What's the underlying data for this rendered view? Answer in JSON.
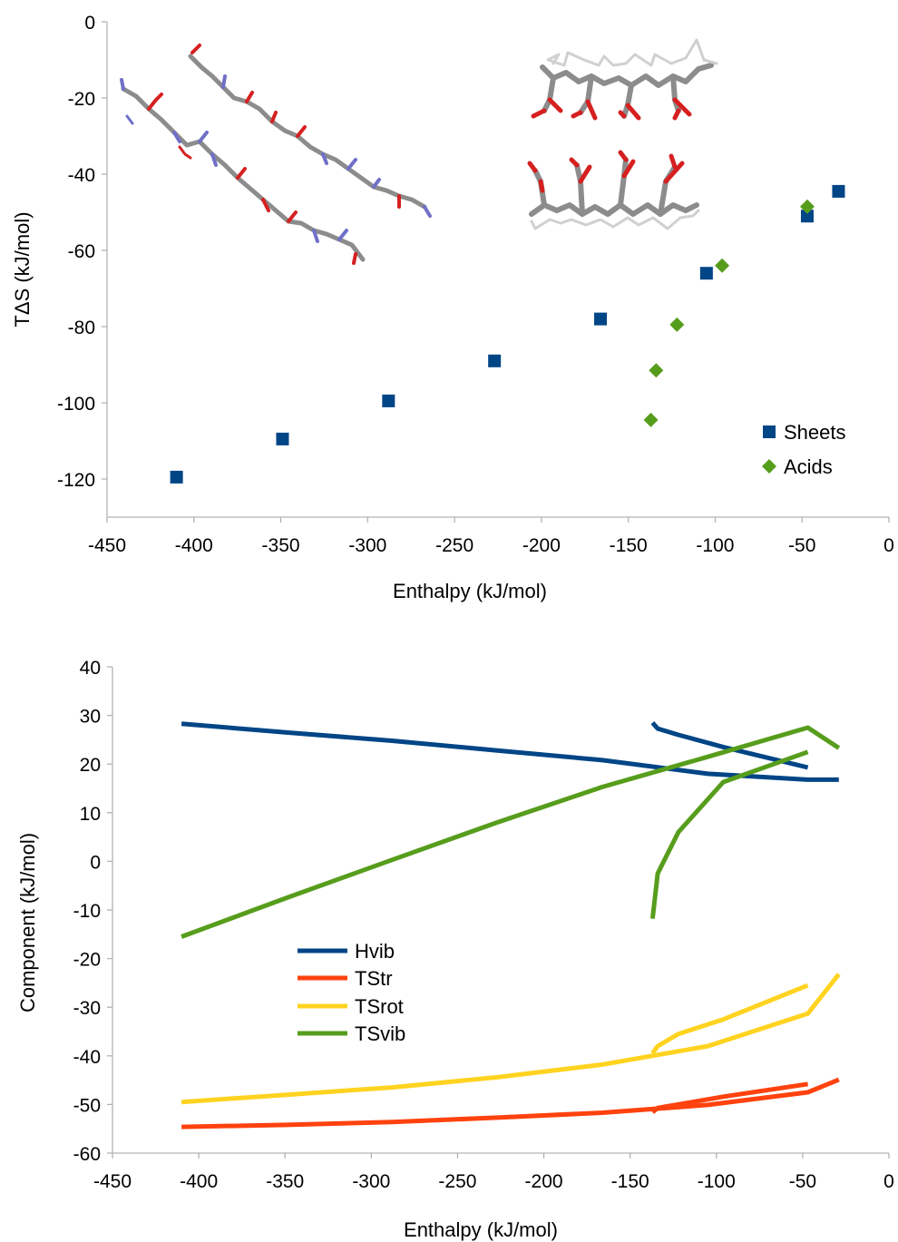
{
  "colors": {
    "sheets": "#004586",
    "acids": "#579d1c",
    "hvib": "#004586",
    "tstr": "#ff420e",
    "tsrot": "#ffd320",
    "tsvib": "#579d1c",
    "axis": "#b3b3b3"
  },
  "chart_data": [
    {
      "type": "scatter",
      "title": "",
      "xlabel": "Enthalpy (kJ/mol)",
      "ylabel": "TΔS (kJ/mol)",
      "xlim": [
        -450,
        0
      ],
      "ylim": [
        -130,
        0
      ],
      "xticks": [
        -450,
        -400,
        -350,
        -300,
        -250,
        -200,
        -150,
        -100,
        -50,
        0
      ],
      "yticks": [
        0,
        -20,
        -40,
        -60,
        -80,
        -100,
        -120
      ],
      "grid": false,
      "legend_position": "bottom-right",
      "series": [
        {
          "name": "Sheets",
          "marker": "square",
          "points": [
            [
              -410,
              -119.5
            ],
            [
              -349,
              -109.5
            ],
            [
              -288,
              -99.5
            ],
            [
              -227,
              -89
            ],
            [
              -166,
              -78
            ],
            [
              -105,
              -66
            ],
            [
              -47,
              -51
            ],
            [
              -29,
              -44.5
            ]
          ]
        },
        {
          "name": "Acids",
          "marker": "diamond",
          "points": [
            [
              -137,
              -104.5
            ],
            [
              -134,
              -91.5
            ],
            [
              -122,
              -79.5
            ],
            [
              -96,
              -64
            ],
            [
              -47,
              -48.5
            ]
          ]
        }
      ],
      "insets": [
        "beta-sheet-molecule-image",
        "acid-layers-molecule-image"
      ]
    },
    {
      "type": "line",
      "title": "",
      "xlabel": "Enthalpy (kJ/mol)",
      "ylabel": "Component (kJ/mol)",
      "xlim": [
        -450,
        0
      ],
      "ylim": [
        -60,
        40
      ],
      "xticks": [
        -450,
        -400,
        -350,
        -300,
        -250,
        -200,
        -150,
        -100,
        -50,
        0
      ],
      "yticks": [
        40,
        30,
        20,
        10,
        0,
        -10,
        -20,
        -30,
        -40,
        -50,
        -60
      ],
      "grid": false,
      "legend_position": "center-left",
      "series": [
        {
          "name": "Hvib",
          "segments": [
            [
              [
                -410,
                28.3
              ],
              [
                -349,
                26.5
              ],
              [
                -288,
                24.8
              ],
              [
                -227,
                22.8
              ],
              [
                -166,
                20.8
              ],
              [
                -105,
                18.0
              ],
              [
                -47,
                16.8
              ],
              [
                -29,
                16.8
              ]
            ],
            [
              [
                -137,
                28.5
              ],
              [
                -134,
                27.3
              ],
              [
                -122,
                26.0
              ],
              [
                -96,
                23.5
              ],
              [
                -47,
                19.3
              ]
            ]
          ]
        },
        {
          "name": "TStr",
          "segments": [
            [
              [
                -410,
                -54.6
              ],
              [
                -349,
                -54.2
              ],
              [
                -288,
                -53.6
              ],
              [
                -227,
                -52.7
              ],
              [
                -166,
                -51.7
              ],
              [
                -105,
                -50.1
              ],
              [
                -47,
                -47.5
              ],
              [
                -29,
                -44.9
              ]
            ],
            [
              [
                -137,
                -51.6
              ],
              [
                -134,
                -50.7
              ],
              [
                -122,
                -50.0
              ],
              [
                -96,
                -48.4
              ],
              [
                -47,
                -45.8
              ]
            ]
          ]
        },
        {
          "name": "TSrot",
          "segments": [
            [
              [
                -410,
                -49.5
              ],
              [
                -349,
                -48.0
              ],
              [
                -288,
                -46.5
              ],
              [
                -227,
                -44.4
              ],
              [
                -166,
                -41.8
              ],
              [
                -105,
                -38.0
              ],
              [
                -47,
                -31.3
              ],
              [
                -29,
                -23.2
              ]
            ],
            [
              [
                -137,
                -39.5
              ],
              [
                -134,
                -38.0
              ],
              [
                -122,
                -35.5
              ],
              [
                -96,
                -32.5
              ],
              [
                -47,
                -25.5
              ]
            ]
          ]
        },
        {
          "name": "TSvib",
          "segments": [
            [
              [
                -410,
                -15.5
              ],
              [
                -349,
                -7.5
              ],
              [
                -288,
                0.3
              ],
              [
                -227,
                8.0
              ],
              [
                -166,
                15.3
              ],
              [
                -105,
                21.5
              ],
              [
                -47,
                27.5
              ],
              [
                -29,
                23.3
              ]
            ],
            [
              [
                -137,
                -11.8
              ],
              [
                -134,
                -2.5
              ],
              [
                -122,
                6.0
              ],
              [
                -96,
                16.3
              ],
              [
                -47,
                22.5
              ]
            ]
          ]
        }
      ]
    }
  ]
}
